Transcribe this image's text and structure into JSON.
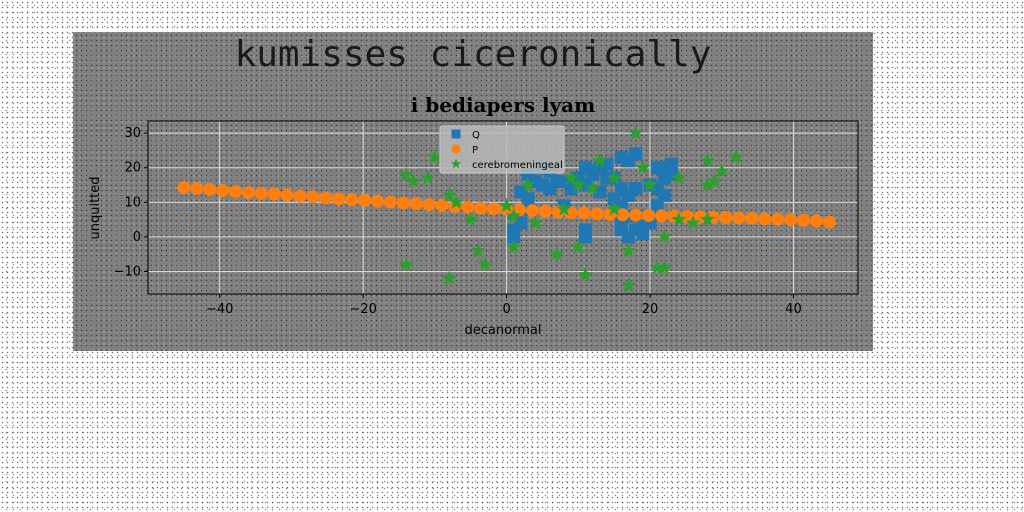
{
  "chart_data": {
    "type": "scatter",
    "suptitle": "kumisses ciceronically",
    "title": "i bediapers lyam",
    "xlabel": "decanormal",
    "ylabel": "unquitted",
    "xlim": [
      -50,
      49
    ],
    "ylim": [
      -16.5,
      33.5
    ],
    "xticks": [
      -40,
      -20,
      0,
      20,
      40
    ],
    "yticks": [
      -10,
      0,
      10,
      20,
      30
    ],
    "xtick_labels": [
      "−40",
      "−20",
      "0",
      "20",
      "40"
    ],
    "ytick_labels": [
      "−10",
      "0",
      "10",
      "20",
      "30"
    ],
    "grid": true,
    "legend_position": "upper center",
    "series": [
      {
        "name": "Q",
        "marker": "square",
        "color": "#1f77b4",
        "points": [
          [
            1,
            2
          ],
          [
            1,
            0
          ],
          [
            2,
            4
          ],
          [
            1,
            7
          ],
          [
            3,
            8
          ],
          [
            2,
            13
          ],
          [
            4,
            16
          ],
          [
            5,
            15
          ],
          [
            3,
            18
          ],
          [
            5,
            20
          ],
          [
            6,
            19
          ],
          [
            6,
            14
          ],
          [
            7,
            16
          ],
          [
            3,
            11
          ],
          [
            9,
            14
          ],
          [
            8,
            16
          ],
          [
            10,
            17
          ],
          [
            11,
            15
          ],
          [
            11,
            20
          ],
          [
            12,
            19
          ],
          [
            13,
            20
          ],
          [
            12,
            18
          ],
          [
            11,
            2
          ],
          [
            11,
            0
          ],
          [
            14,
            21
          ],
          [
            15,
            17
          ],
          [
            16,
            14
          ],
          [
            16,
            23
          ],
          [
            17,
            22
          ],
          [
            18,
            24
          ],
          [
            15,
            11
          ],
          [
            16,
            9
          ],
          [
            17,
            12
          ],
          [
            18,
            14
          ],
          [
            17,
            6
          ],
          [
            16,
            4
          ],
          [
            16,
            2
          ],
          [
            18,
            2
          ],
          [
            19,
            3
          ],
          [
            20,
            4
          ],
          [
            19,
            1
          ],
          [
            20,
            6
          ],
          [
            21,
            9
          ],
          [
            22,
            12
          ],
          [
            21,
            14
          ],
          [
            21,
            20
          ],
          [
            22,
            17
          ],
          [
            22,
            20
          ],
          [
            23,
            21
          ],
          [
            23,
            18
          ],
          [
            20,
            15
          ],
          [
            8,
            9
          ],
          [
            17,
            0
          ],
          [
            13,
            13
          ],
          [
            14,
            17
          ]
        ]
      },
      {
        "name": "P",
        "marker": "circle",
        "color": "#ff7f0e",
        "points": [
          [
            -45,
            14.3
          ],
          [
            -43.2,
            14.0
          ],
          [
            -41.4,
            13.7
          ],
          [
            -39.6,
            13.4
          ],
          [
            -37.8,
            13.1
          ],
          [
            -36,
            12.8
          ],
          [
            -34.2,
            12.6
          ],
          [
            -32.4,
            12.4
          ],
          [
            -30.6,
            12.1
          ],
          [
            -28.8,
            11.8
          ],
          [
            -27,
            11.6
          ],
          [
            -25.2,
            11.3
          ],
          [
            -23.4,
            11.0
          ],
          [
            -21.6,
            10.8
          ],
          [
            -19.8,
            10.6
          ],
          [
            -18,
            10.3
          ],
          [
            -16.2,
            10.1
          ],
          [
            -14.4,
            9.8
          ],
          [
            -12.6,
            9.6
          ],
          [
            -10.8,
            9.3
          ],
          [
            -9,
            9.1
          ],
          [
            -7.2,
            8.8
          ],
          [
            -5.4,
            8.6
          ],
          [
            -3.6,
            8.3
          ],
          [
            -1.8,
            8.1
          ],
          [
            0,
            8.0
          ],
          [
            1.8,
            7.8
          ],
          [
            3.6,
            7.6
          ],
          [
            5.4,
            7.4
          ],
          [
            7.2,
            7.2
          ],
          [
            9,
            7.0
          ],
          [
            10.8,
            6.9
          ],
          [
            12.6,
            6.7
          ],
          [
            14.4,
            6.5
          ],
          [
            16.2,
            6.4
          ],
          [
            18,
            6.3
          ],
          [
            19.8,
            6.2
          ],
          [
            21.6,
            6.1
          ],
          [
            23.4,
            6.0
          ],
          [
            25.2,
            5.9
          ],
          [
            27,
            5.8
          ],
          [
            28.8,
            5.7
          ],
          [
            30.6,
            5.6
          ],
          [
            32.4,
            5.5
          ],
          [
            34.2,
            5.4
          ],
          [
            36,
            5.2
          ],
          [
            37.8,
            5.1
          ],
          [
            39.6,
            5.0
          ],
          [
            41.4,
            4.8
          ],
          [
            43.2,
            4.6
          ],
          [
            45,
            4.3
          ]
        ]
      },
      {
        "name": "cerebromeningeal",
        "marker": "star",
        "color": "#2ca02c",
        "points": [
          [
            -14,
            18
          ],
          [
            -13,
            16
          ],
          [
            -11,
            17
          ],
          [
            -10,
            23
          ],
          [
            -8,
            12
          ],
          [
            -7,
            10
          ],
          [
            -5,
            5
          ],
          [
            -4,
            -4
          ],
          [
            -3,
            -8
          ],
          [
            -8,
            -12
          ],
          [
            -14,
            -8
          ],
          [
            0,
            9
          ],
          [
            1,
            6
          ],
          [
            1,
            -3
          ],
          [
            3,
            15
          ],
          [
            4,
            4
          ],
          [
            7,
            -5
          ],
          [
            8,
            8
          ],
          [
            9,
            17
          ],
          [
            10,
            15
          ],
          [
            10,
            -3
          ],
          [
            11,
            -11
          ],
          [
            12,
            14
          ],
          [
            13,
            22
          ],
          [
            15,
            17
          ],
          [
            15,
            8
          ],
          [
            17,
            -4
          ],
          [
            17,
            -14
          ],
          [
            18,
            30
          ],
          [
            19,
            20
          ],
          [
            20,
            15
          ],
          [
            21,
            -9
          ],
          [
            22,
            0
          ],
          [
            22,
            -9
          ],
          [
            24,
            5
          ],
          [
            24,
            17
          ],
          [
            26,
            4
          ],
          [
            28,
            22
          ],
          [
            28,
            15
          ],
          [
            28,
            5
          ],
          [
            29,
            16
          ],
          [
            30,
            19
          ],
          [
            32,
            23
          ]
        ]
      }
    ]
  }
}
